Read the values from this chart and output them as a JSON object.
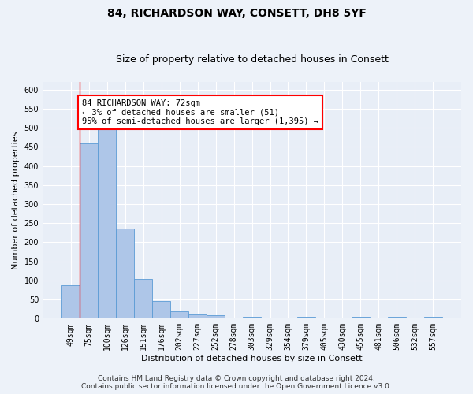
{
  "title_line1": "84, RICHARDSON WAY, CONSETT, DH8 5YF",
  "title_line2": "Size of property relative to detached houses in Consett",
  "xlabel": "Distribution of detached houses by size in Consett",
  "ylabel": "Number of detached properties",
  "categories": [
    "49sqm",
    "75sqm",
    "100sqm",
    "126sqm",
    "151sqm",
    "176sqm",
    "202sqm",
    "227sqm",
    "252sqm",
    "278sqm",
    "303sqm",
    "329sqm",
    "354sqm",
    "379sqm",
    "405sqm",
    "430sqm",
    "455sqm",
    "481sqm",
    "506sqm",
    "532sqm",
    "557sqm"
  ],
  "values": [
    88,
    460,
    500,
    235,
    103,
    47,
    19,
    12,
    8,
    0,
    5,
    0,
    0,
    5,
    0,
    0,
    5,
    0,
    5,
    0,
    5
  ],
  "bar_color": "#aec6e8",
  "bar_edge_color": "#5b9bd5",
  "red_line_x": 0.5,
  "annotation_text": "84 RICHARDSON WAY: 72sqm\n← 3% of detached houses are smaller (51)\n95% of semi-detached houses are larger (1,395) →",
  "annotation_box_color": "white",
  "annotation_box_edge_color": "red",
  "ylim": [
    0,
    620
  ],
  "yticks": [
    0,
    50,
    100,
    150,
    200,
    250,
    300,
    350,
    400,
    450,
    500,
    550,
    600
  ],
  "footer_line1": "Contains HM Land Registry data © Crown copyright and database right 2024.",
  "footer_line2": "Contains public sector information licensed under the Open Government Licence v3.0.",
  "background_color": "#edf2f9",
  "plot_background_color": "#e8eef7",
  "grid_color": "white",
  "title_fontsize": 10,
  "subtitle_fontsize": 9,
  "axis_label_fontsize": 8,
  "tick_fontsize": 7,
  "footer_fontsize": 6.5,
  "annotation_fontsize": 7.5
}
